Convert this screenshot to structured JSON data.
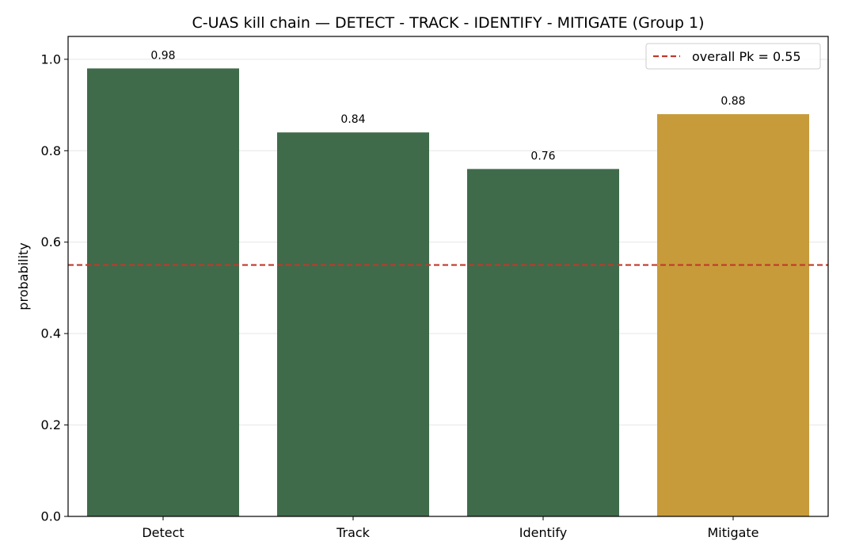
{
  "chart_data": {
    "type": "bar",
    "title": "C-UAS kill chain — DETECT - TRACK - IDENTIFY - MITIGATE (Group 1)",
    "xlabel": "",
    "ylabel": "probability",
    "categories": [
      "Detect",
      "Track",
      "Identify",
      "Mitigate"
    ],
    "values": [
      0.98,
      0.84,
      0.76,
      0.88
    ],
    "value_labels": [
      "0.98",
      "0.84",
      "0.76",
      "0.88"
    ],
    "bar_colors": [
      "#3f6b4a",
      "#3f6b4a",
      "#3f6b4a",
      "#c79b3a"
    ],
    "ylim": [
      0,
      1.05
    ],
    "yticks": [
      0.0,
      0.2,
      0.4,
      0.6,
      0.8,
      1.0
    ],
    "ytick_labels": [
      "0.0",
      "0.2",
      "0.4",
      "0.6",
      "0.8",
      "1.0"
    ],
    "grid": "horizontal",
    "reference_line": {
      "value": 0.55,
      "label": "overall Pk = 0.55",
      "color": "#c0392b",
      "style": "dashed"
    },
    "legend_position": "top-right"
  }
}
